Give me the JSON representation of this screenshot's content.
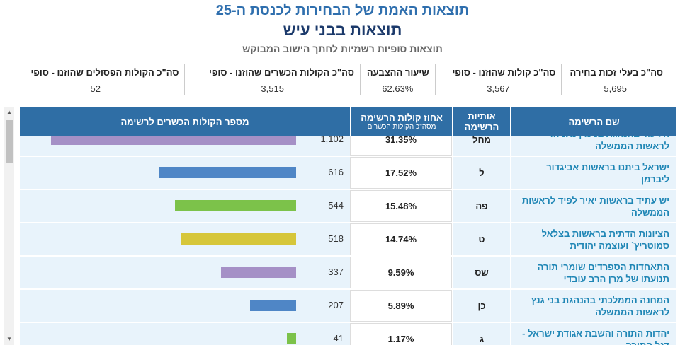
{
  "header": {
    "title": "תוצאות האמת של הבחירות לכנסת ה-25",
    "subtitle": "תוצאות בבני עיש",
    "caption": "תוצאות סופיות רשמיות לחתך הישוב המבוקש"
  },
  "summary": [
    {
      "label": "סה\"כ בעלי זכות בחירה",
      "value": "5,695"
    },
    {
      "label": "סה\"כ קולות שהוזנו - סופי",
      "value": "3,567"
    },
    {
      "label": "שיעור ההצבעה",
      "value": "62.63%"
    },
    {
      "label": "סה\"כ הקולות הכשרים שהוזנו - סופי",
      "value": "3,515"
    },
    {
      "label": "סה\"כ הקולות הפסולים שהוזנו - סופי",
      "value": "52"
    }
  ],
  "table": {
    "columns": [
      "שם הרשימה",
      "אותיות הרשימה",
      "אחוז קולות הרשימה",
      "מספר הקולות הכשרים לרשימה"
    ],
    "percent_note": "מסה\"כ הקולות הכשרים",
    "rows": [
      {
        "name": "הליכוד בהנהגת בנימין נתניהו לראשות הממשלה",
        "letters": "מחל",
        "percent": "31.35%",
        "votes": 1102,
        "votes_label": "1,102",
        "color": "#a590c6"
      },
      {
        "name": "ישראל ביתנו בראשות אביגדור ליברמן",
        "letters": "ל",
        "percent": "17.52%",
        "votes": 616,
        "votes_label": "616",
        "color": "#4f86c6"
      },
      {
        "name": "יש עתיד בראשות יאיר לפיד לראשות הממשלה",
        "letters": "פה",
        "percent": "15.48%",
        "votes": 544,
        "votes_label": "544",
        "color": "#7cc24a"
      },
      {
        "name": "הציונות הדתית בראשות בצלאל סמוטריץ` ועוצמה יהודית",
        "letters": "ט",
        "percent": "14.74%",
        "votes": 518,
        "votes_label": "518",
        "color": "#d6c63a"
      },
      {
        "name": "התאחדות הספרדים שומרי תורה תנועתו של מרן הרב עובדי",
        "letters": "שס",
        "percent": "9.59%",
        "votes": 337,
        "votes_label": "337",
        "color": "#a590c6"
      },
      {
        "name": "המחנה הממלכתי בהנהגת בני גנץ לראשות הממשלה",
        "letters": "כן",
        "percent": "5.89%",
        "votes": 207,
        "votes_label": "207",
        "color": "#4f86c6"
      },
      {
        "name": "יהדות התורה והשבת אגודת ישראל - דגל התורה",
        "letters": "ג",
        "percent": "1.17%",
        "votes": 41,
        "votes_label": "41",
        "color": "#7cc24a"
      }
    ]
  }
}
